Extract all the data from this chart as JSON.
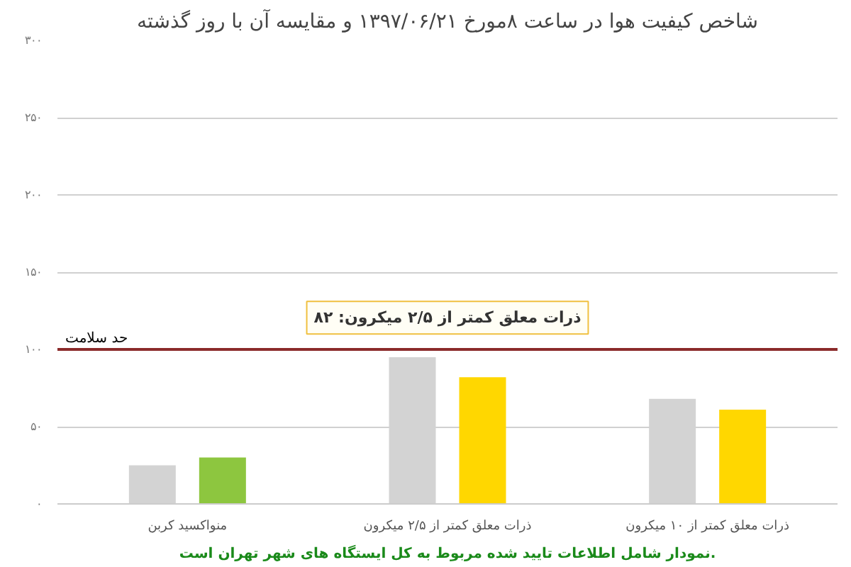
{
  "chart_data": {
    "type": "bar",
    "title": "شاخص کیفیت هوا در ساعت ۸مورخ ۱۳۹۷/۰۶/۲۱ و مقایسه آن با روز گذشته",
    "categories": [
      "منواکسید کربن",
      "ذرات معلق کمتر از ۲/۵ میکرون",
      "ذرات معلق کمتر از ۱۰ میکرون"
    ],
    "series": [
      {
        "color": "#d3d3d3",
        "values": [
          25,
          95,
          68
        ]
      },
      {
        "colors": [
          "#8dc63f",
          "#ffd700",
          "#ffd700"
        ],
        "values": [
          30,
          82,
          61
        ]
      }
    ],
    "ylim": [
      0,
      300
    ],
    "yticks": [
      {
        "value": 0,
        "label": "۰"
      },
      {
        "value": 50,
        "label": "۵۰"
      },
      {
        "value": 100,
        "label": "۱۰۰"
      },
      {
        "value": 150,
        "label": "۱۵۰"
      },
      {
        "value": 200,
        "label": "۲۰۰"
      },
      {
        "value": 250,
        "label": "۲۵۰"
      },
      {
        "value": 300,
        "label": "۳۰۰"
      }
    ],
    "grid": "y",
    "ref_lines": [
      {
        "axis": "y",
        "value": 100,
        "label": "حد سلامت",
        "color": "#8b2a2a"
      }
    ],
    "annotations": [
      "ذرات معلق کمتر از ۲/۵ میکرون: ۸۲",
      "نمودار شامل اطلاعات تایید شده مربوط به کل ایستگاه های شهر تهران است."
    ]
  }
}
